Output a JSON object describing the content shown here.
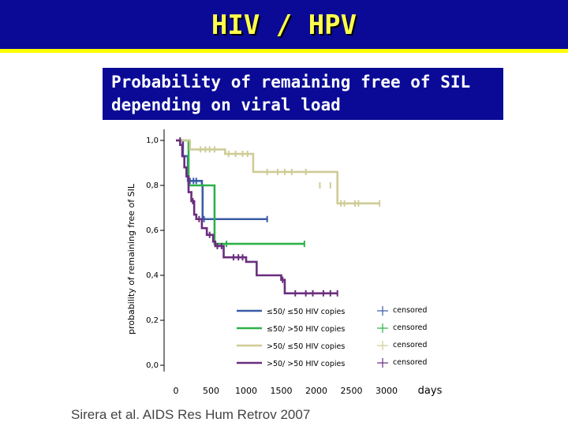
{
  "slide": {
    "title": "HIV / HPV",
    "subtitle_line1": "Probability of remaining free of SIL",
    "subtitle_line2": "depending on viral load",
    "citation": "Sirera et al. AIDS Res Hum Retrov 2007"
  },
  "colors": {
    "header_bg": "#0a0a96",
    "header_rule": "#ffff00",
    "title_text": "#ffff4a",
    "subtitle_text": "#ffffff"
  },
  "chart_data": {
    "type": "line",
    "step": true,
    "ylabel": "probability of remaining free of SIL",
    "xunit": "days",
    "xlim": [
      0,
      3000
    ],
    "ylim": [
      0,
      1
    ],
    "xticks": [
      0,
      500,
      1000,
      1500,
      2000,
      2500,
      3000
    ],
    "xtick_labels": [
      "0",
      "500",
      "1000",
      "1500",
      "2000",
      "2500",
      "3000"
    ],
    "yticks": [
      0,
      0.2,
      0.4,
      0.6,
      0.8,
      1.0
    ],
    "ytick_labels": [
      "0,0",
      "0,2",
      "0,4",
      "0,6",
      "0,8",
      "1,0"
    ],
    "legend_position": "bottom-right",
    "censored_label": "censored",
    "series": [
      {
        "name": "≤50/ ≤50 HIV copies",
        "color": "#3a5ca8",
        "steps": [
          [
            0,
            1.0
          ],
          [
            100,
            0.93
          ],
          [
            170,
            0.82
          ],
          [
            370,
            0.8
          ],
          [
            380,
            0.65
          ],
          [
            1300,
            0.65
          ]
        ],
        "censored": [
          [
            200,
            0.82
          ],
          [
            250,
            0.82
          ],
          [
            290,
            0.82
          ],
          [
            400,
            0.65
          ],
          [
            1300,
            0.65
          ]
        ]
      },
      {
        "name": "≤50/ >50 HIV copies",
        "color": "#2db14a",
        "steps": [
          [
            0,
            1.0
          ],
          [
            180,
            0.8
          ],
          [
            550,
            0.54
          ],
          [
            1830,
            0.54
          ]
        ],
        "censored": [
          [
            720,
            0.54
          ],
          [
            1830,
            0.54
          ]
        ]
      },
      {
        "name": ">50/ ≤50 HIV copies",
        "color": "#cfcc96",
        "steps": [
          [
            0,
            1.0
          ],
          [
            200,
            0.96
          ],
          [
            700,
            0.94
          ],
          [
            1100,
            0.86
          ],
          [
            2300,
            0.72
          ],
          [
            2900,
            0.72
          ]
        ],
        "censored": [
          [
            350,
            0.96
          ],
          [
            420,
            0.96
          ],
          [
            480,
            0.96
          ],
          [
            550,
            0.96
          ],
          [
            750,
            0.94
          ],
          [
            850,
            0.94
          ],
          [
            950,
            0.94
          ],
          [
            1020,
            0.94
          ],
          [
            1300,
            0.86
          ],
          [
            1450,
            0.86
          ],
          [
            1550,
            0.86
          ],
          [
            1650,
            0.86
          ],
          [
            1850,
            0.86
          ],
          [
            2050,
            0.8
          ],
          [
            2200,
            0.8
          ],
          [
            2350,
            0.72
          ],
          [
            2400,
            0.72
          ],
          [
            2550,
            0.72
          ],
          [
            2600,
            0.72
          ],
          [
            2900,
            0.72
          ]
        ]
      },
      {
        "name": ">50/ >50 HIV copies",
        "color": "#6a2d7e",
        "steps": [
          [
            0,
            1.0
          ],
          [
            60,
            0.98
          ],
          [
            90,
            0.93
          ],
          [
            120,
            0.88
          ],
          [
            150,
            0.84
          ],
          [
            180,
            0.77
          ],
          [
            220,
            0.73
          ],
          [
            260,
            0.67
          ],
          [
            290,
            0.65
          ],
          [
            370,
            0.61
          ],
          [
            440,
            0.58
          ],
          [
            530,
            0.55
          ],
          [
            560,
            0.53
          ],
          [
            680,
            0.48
          ],
          [
            1000,
            0.46
          ],
          [
            1150,
            0.4
          ],
          [
            1500,
            0.38
          ],
          [
            1550,
            0.32
          ],
          [
            2300,
            0.32
          ]
        ],
        "censored": [
          [
            60,
            1.0
          ],
          [
            100,
            0.98
          ],
          [
            240,
            0.73
          ],
          [
            330,
            0.65
          ],
          [
            480,
            0.58
          ],
          [
            590,
            0.53
          ],
          [
            650,
            0.53
          ],
          [
            820,
            0.48
          ],
          [
            890,
            0.48
          ],
          [
            950,
            0.48
          ],
          [
            1520,
            0.38
          ],
          [
            1700,
            0.32
          ],
          [
            1850,
            0.32
          ],
          [
            1950,
            0.32
          ],
          [
            2100,
            0.32
          ],
          [
            2200,
            0.32
          ],
          [
            2300,
            0.32
          ]
        ]
      }
    ]
  }
}
